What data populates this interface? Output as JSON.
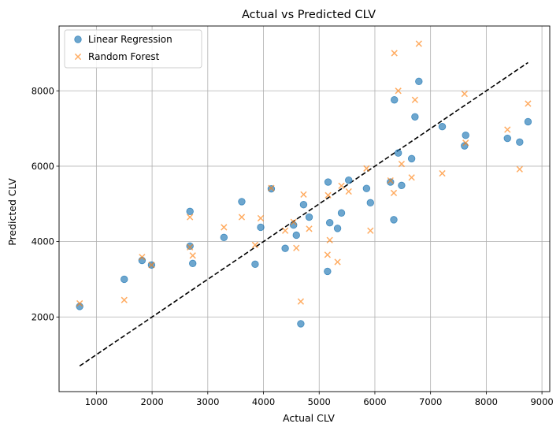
{
  "chart_data": {
    "type": "scatter",
    "title": "Actual vs Predicted CLV",
    "xlabel": "Actual CLV",
    "ylabel": "Predicted CLV",
    "xlim": [
      330,
      9140
    ],
    "ylim": [
      20,
      9720
    ],
    "xticks": [
      1000,
      2000,
      3000,
      4000,
      5000,
      6000,
      7000,
      8000,
      9000
    ],
    "yticks": [
      2000,
      4000,
      6000,
      8000
    ],
    "grid": true,
    "legend_position": "top-left",
    "reference_line": {
      "style": "dashed",
      "color": "#000000",
      "points": [
        [
          700,
          700
        ],
        [
          8750,
          8750
        ]
      ]
    },
    "series": [
      {
        "name": "Linear Regression",
        "marker": "circle",
        "color": "#1f77b4",
        "points": [
          [
            700,
            2280
          ],
          [
            1500,
            3000
          ],
          [
            1820,
            3500
          ],
          [
            1990,
            3380
          ],
          [
            2680,
            4800
          ],
          [
            2680,
            3880
          ],
          [
            2730,
            3420
          ],
          [
            3290,
            4110
          ],
          [
            3610,
            5060
          ],
          [
            3850,
            3400
          ],
          [
            3950,
            4380
          ],
          [
            4140,
            5400
          ],
          [
            4390,
            3820
          ],
          [
            4540,
            4440
          ],
          [
            4590,
            4170
          ],
          [
            4670,
            1820
          ],
          [
            4720,
            4980
          ],
          [
            4820,
            4650
          ],
          [
            5150,
            3210
          ],
          [
            5160,
            5580
          ],
          [
            5190,
            4500
          ],
          [
            5330,
            4350
          ],
          [
            5400,
            4760
          ],
          [
            5530,
            5630
          ],
          [
            5850,
            5410
          ],
          [
            5920,
            5030
          ],
          [
            6280,
            5580
          ],
          [
            6340,
            4580
          ],
          [
            6350,
            7760
          ],
          [
            6420,
            6350
          ],
          [
            6480,
            5490
          ],
          [
            6660,
            6200
          ],
          [
            6720,
            7310
          ],
          [
            6790,
            8250
          ],
          [
            7210,
            7050
          ],
          [
            7610,
            6540
          ],
          [
            7630,
            6820
          ],
          [
            8380,
            6740
          ],
          [
            8600,
            6640
          ],
          [
            8750,
            7180
          ]
        ]
      },
      {
        "name": "Random Forest",
        "marker": "x",
        "color": "#ff7f0e",
        "points": [
          [
            700,
            2360
          ],
          [
            1500,
            2450
          ],
          [
            1820,
            3590
          ],
          [
            1990,
            3380
          ],
          [
            2680,
            4650
          ],
          [
            2680,
            3850
          ],
          [
            2730,
            3630
          ],
          [
            3290,
            4380
          ],
          [
            3610,
            4650
          ],
          [
            3850,
            3910
          ],
          [
            3950,
            4620
          ],
          [
            4140,
            5420
          ],
          [
            4390,
            4290
          ],
          [
            4540,
            4520
          ],
          [
            4590,
            3830
          ],
          [
            4670,
            2410
          ],
          [
            4720,
            5250
          ],
          [
            4820,
            4340
          ],
          [
            5150,
            3650
          ],
          [
            5160,
            5230
          ],
          [
            5190,
            4040
          ],
          [
            5330,
            3460
          ],
          [
            5400,
            5480
          ],
          [
            5530,
            5330
          ],
          [
            5850,
            5940
          ],
          [
            5920,
            4290
          ],
          [
            6280,
            5620
          ],
          [
            6340,
            5290
          ],
          [
            6350,
            9000
          ],
          [
            6420,
            8000
          ],
          [
            6480,
            6060
          ],
          [
            6660,
            5700
          ],
          [
            6720,
            7760
          ],
          [
            6790,
            9250
          ],
          [
            7210,
            5810
          ],
          [
            7610,
            7920
          ],
          [
            7630,
            6620
          ],
          [
            8380,
            6970
          ],
          [
            8600,
            5920
          ],
          [
            8750,
            7660
          ]
        ]
      }
    ]
  }
}
